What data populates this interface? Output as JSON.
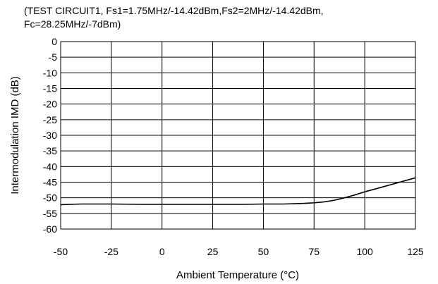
{
  "chart_data": {
    "type": "line",
    "title": "",
    "subtitle": "(TEST CIRCUIT1, Fs1=1.75MHz/-14.42dBm,Fs2=2MHz/-14.42dBm,\nFc=28.25MHz/-7dBm)",
    "xlabel": "Ambient Temperature (°C)",
    "ylabel": "Intermodulation IMD (dB)",
    "xlim": [
      -50,
      125
    ],
    "ylim": [
      -60,
      0
    ],
    "xticks": [
      "-50",
      "-25",
      "0",
      "25",
      "50",
      "75",
      "100",
      "125"
    ],
    "yticks": [
      "0",
      "-5",
      "-10",
      "-15",
      "-20",
      "-25",
      "-30",
      "-35",
      "-40",
      "-45",
      "-50",
      "-55",
      "-60"
    ],
    "grid": true,
    "series": [
      {
        "x": [
          -50,
          -40,
          -25,
          -10,
          0,
          10,
          25,
          40,
          50,
          60,
          70,
          75,
          80,
          85,
          90,
          95,
          100,
          105,
          110,
          115,
          120,
          125
        ],
        "y": [
          -52.2,
          -52.0,
          -52.0,
          -52.1,
          -52.1,
          -52.1,
          -52.1,
          -52.1,
          -52.0,
          -52.0,
          -51.8,
          -51.6,
          -51.3,
          -50.8,
          -50.0,
          -49.1,
          -48.1,
          -47.2,
          -46.3,
          -45.4,
          -44.5,
          -43.6
        ]
      }
    ]
  }
}
